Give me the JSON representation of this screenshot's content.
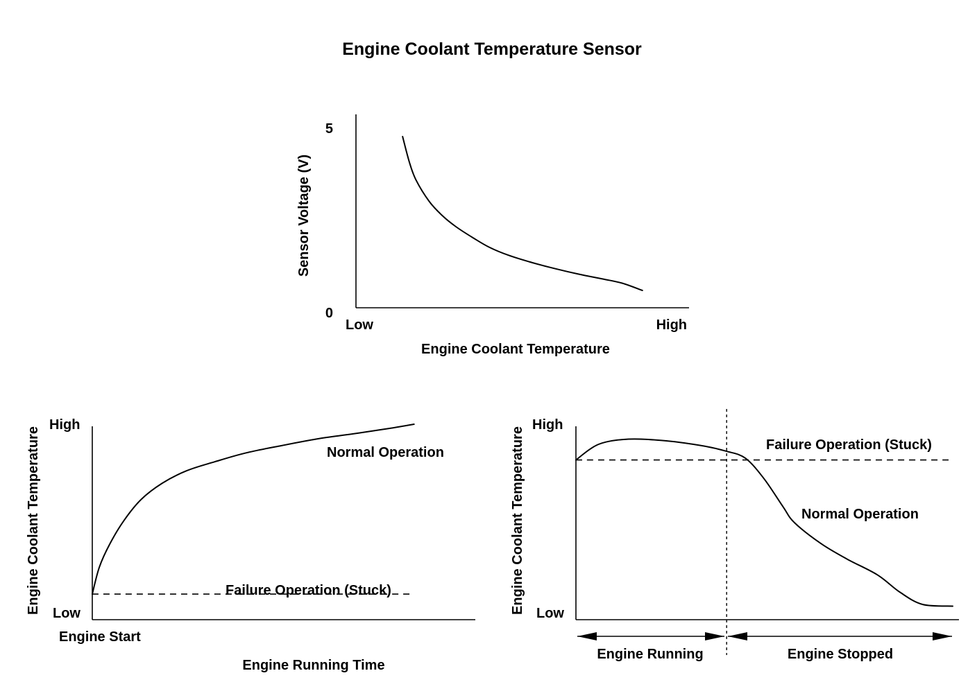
{
  "title": "Engine Coolant Temperature Sensor",
  "chart_data": [
    {
      "type": "line",
      "title": "",
      "xlabel": "Engine Coolant Temperature",
      "ylabel": "Sensor Voltage (V)",
      "x_tick_labels": [
        "Low",
        "High"
      ],
      "y_tick_labels": [
        "0",
        "5"
      ],
      "ylim": [
        0,
        5
      ],
      "x_domain": [
        0,
        1
      ],
      "grid": false,
      "series": [
        {
          "x": [
            0.14,
            0.16,
            0.18,
            0.22,
            0.26,
            0.3,
            0.35,
            0.4,
            0.46,
            0.53,
            0.6,
            0.67,
            0.74,
            0.8,
            0.86
          ],
          "y": [
            4.75,
            4.05,
            3.55,
            2.95,
            2.55,
            2.25,
            1.95,
            1.68,
            1.45,
            1.25,
            1.08,
            0.93,
            0.8,
            0.68,
            0.48
          ]
        }
      ]
    },
    {
      "type": "line",
      "title": "",
      "xlabel": "Engine Running Time",
      "ylabel": "Engine Coolant Temperature",
      "x_tick_labels": [
        "Engine Start"
      ],
      "y_tick_labels": [
        "Low",
        "High"
      ],
      "x_domain": [
        0,
        1
      ],
      "ylim": [
        0,
        1
      ],
      "grid": false,
      "series": [
        {
          "name": "Normal Operation",
          "style": "solid",
          "x": [
            0.0,
            0.02,
            0.05,
            0.09,
            0.14,
            0.2,
            0.27,
            0.35,
            0.44,
            0.54,
            0.65,
            0.76,
            0.86,
            0.92
          ],
          "y": [
            0.05,
            0.2,
            0.33,
            0.46,
            0.58,
            0.67,
            0.74,
            0.79,
            0.84,
            0.88,
            0.92,
            0.95,
            0.98,
            1.0
          ]
        },
        {
          "name": "Failure Operation (Stuck)",
          "style": "dashed",
          "x": [
            0.0,
            0.92
          ],
          "y": [
            0.05,
            0.05
          ]
        }
      ]
    },
    {
      "type": "line",
      "title": "",
      "xlabel": "",
      "ylabel": "Engine Coolant Temperature",
      "y_tick_labels": [
        "Low",
        "High"
      ],
      "phases": [
        "Engine Running",
        "Engine Stopped"
      ],
      "phase_boundary_x": 0.4,
      "x_domain": [
        0,
        1
      ],
      "ylim": [
        0,
        1
      ],
      "grid": false,
      "series": [
        {
          "name": "Normal Operation",
          "style": "solid",
          "x": [
            0.0,
            0.06,
            0.14,
            0.24,
            0.34,
            0.4,
            0.45,
            0.5,
            0.55,
            0.58,
            0.65,
            0.72,
            0.8,
            0.86,
            0.92,
            1.0
          ],
          "y": [
            0.87,
            0.96,
            0.99,
            0.98,
            0.95,
            0.92,
            0.88,
            0.76,
            0.6,
            0.51,
            0.39,
            0.3,
            0.21,
            0.11,
            0.04,
            0.03
          ]
        },
        {
          "name": "Failure Operation (Stuck)",
          "style": "dashed",
          "x": [
            0.0,
            1.0
          ],
          "y": [
            0.87,
            0.87
          ]
        }
      ]
    }
  ]
}
